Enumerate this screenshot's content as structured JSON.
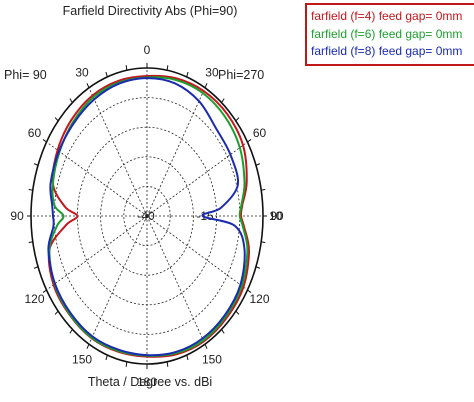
{
  "chart_data": {
    "type": "line",
    "subtype": "polar",
    "title": "Farfield Directivity Abs (Phi=90)",
    "xlabel": "Theta / Degree vs. dBi",
    "left_label": "Phi= 90",
    "right_label": "Phi=270",
    "angle_ticks_right": [
      "0",
      "30",
      "60",
      "90",
      "120",
      "150",
      "180"
    ],
    "angle_ticks_left": [
      "30",
      "60",
      "90",
      "120",
      "150"
    ],
    "radial_ticks": [
      "-40",
      "-15",
      "10"
    ],
    "radial_range": [
      -40,
      10
    ],
    "grid": true,
    "legend_position": "top-right",
    "theta": [
      0,
      15,
      30,
      45,
      60,
      75,
      85,
      90,
      95,
      105,
      120,
      135,
      150,
      165,
      180,
      -165,
      -150,
      -135,
      -120,
      -105,
      -95,
      -90,
      -85,
      -75,
      -60,
      -45,
      -30,
      -15
    ],
    "series": [
      {
        "name": "farfield (f=4) feed gap= 0mm",
        "color": "#c4161c",
        "r": [
          7.3,
          8.2,
          8.8,
          8.8,
          7.8,
          4.5,
          1.2,
          0.5,
          2.0,
          5.5,
          8.0,
          8.6,
          8.9,
          8.4,
          7.5,
          7.5,
          7.7,
          7.2,
          6.5,
          3.5,
          -5.0,
          -10.0,
          -4.5,
          2.0,
          4.5,
          6.0,
          7.0,
          7.3
        ]
      },
      {
        "name": "farfield (f=6) feed gap= 0mm",
        "color": "#1c9e2e",
        "r": [
          6.8,
          7.6,
          8.0,
          7.5,
          6.2,
          3.5,
          0.8,
          0.0,
          1.5,
          4.8,
          7.2,
          8.0,
          8.5,
          8.0,
          7.2,
          7.2,
          7.5,
          7.0,
          6.0,
          3.5,
          -1.0,
          -4.0,
          0.0,
          2.0,
          3.5,
          5.0,
          6.3,
          6.7
        ]
      },
      {
        "name": "farfield (f=8) feed gap= 0mm",
        "color": "#1a2bb0",
        "r": [
          6.6,
          6.4,
          4.8,
          2.0,
          1.5,
          0.5,
          -8.0,
          -16.0,
          -2.0,
          3.5,
          6.5,
          7.4,
          7.8,
          7.6,
          7.0,
          6.8,
          7.0,
          6.5,
          5.8,
          4.0,
          0.5,
          0.5,
          1.0,
          3.0,
          3.8,
          4.5,
          5.5,
          6.3
        ]
      }
    ]
  }
}
